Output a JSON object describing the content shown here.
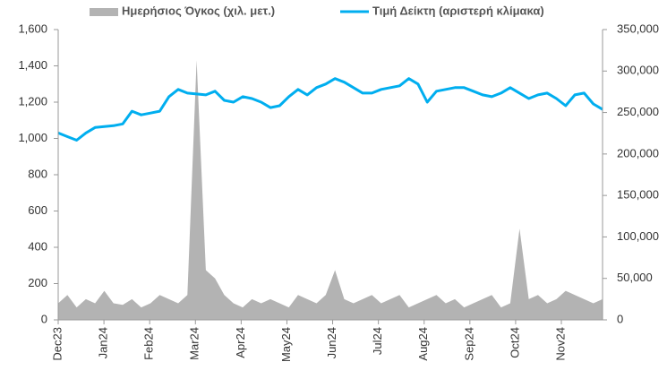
{
  "chart_data": {
    "type": "line",
    "xlim": [
      0,
      11.9
    ],
    "xticks": [
      {
        "value": 0,
        "label": "Dec23"
      },
      {
        "value": 1,
        "label": "Jan24"
      },
      {
        "value": 2,
        "label": "Feb24"
      },
      {
        "value": 3,
        "label": "Mar24"
      },
      {
        "value": 4,
        "label": "Apr24"
      },
      {
        "value": 5,
        "label": "May24"
      },
      {
        "value": 6,
        "label": "Jun24"
      },
      {
        "value": 7,
        "label": "Jul24"
      },
      {
        "value": 8,
        "label": "Aug24"
      },
      {
        "value": 9,
        "label": "Sep24"
      },
      {
        "value": 10,
        "label": "Oct24"
      },
      {
        "value": 11,
        "label": "Nov24"
      }
    ],
    "ylim": [
      0,
      1600
    ],
    "yticks": [
      0,
      200,
      400,
      600,
      800,
      {
        "value": 1000,
        "label": "1,000"
      },
      {
        "value": 1200,
        "label": "1,200"
      },
      {
        "value": 1400,
        "label": "1,400"
      },
      {
        "value": 1600,
        "label": "1,600"
      }
    ],
    "y2lim": [
      0,
      350000
    ],
    "y2ticks": [
      0,
      {
        "value": 50000,
        "label": "50,000"
      },
      {
        "value": 100000,
        "label": "100,000"
      },
      {
        "value": 150000,
        "label": "150,000"
      },
      {
        "value": 200000,
        "label": "200,000"
      },
      {
        "value": 250000,
        "label": "250,000"
      },
      {
        "value": 300000,
        "label": "300,000"
      },
      {
        "value": 350000,
        "label": "350,000"
      }
    ],
    "legend": "top",
    "series": [
      {
        "name": "Ημερήσιος Όγκος (χιλ. μετ.)",
        "color": "#b3b3b3",
        "axis": "y2",
        "kind": "area",
        "values": [
          20000,
          30000,
          15000,
          25000,
          20000,
          35000,
          20000,
          18000,
          25000,
          15000,
          20000,
          30000,
          25000,
          20000,
          30000,
          313000,
          60000,
          50000,
          30000,
          20000,
          15000,
          25000,
          20000,
          25000,
          20000,
          15000,
          30000,
          25000,
          20000,
          30000,
          60000,
          25000,
          20000,
          25000,
          30000,
          20000,
          25000,
          30000,
          15000,
          20000,
          25000,
          30000,
          20000,
          25000,
          15000,
          20000,
          25000,
          30000,
          15000,
          20000,
          110000,
          25000,
          30000,
          20000,
          25000,
          35000,
          30000,
          25000,
          20000,
          25000
        ]
      },
      {
        "name": "Τιμή Δείκτη (αριστερή κλίμακα)",
        "color": "#00aeef",
        "kind": "line",
        "values": [
          1030,
          1010,
          990,
          1030,
          1060,
          1065,
          1070,
          1080,
          1150,
          1130,
          1140,
          1150,
          1230,
          1270,
          1250,
          1245,
          1240,
          1260,
          1210,
          1200,
          1230,
          1220,
          1200,
          1170,
          1180,
          1230,
          1270,
          1240,
          1280,
          1300,
          1330,
          1310,
          1280,
          1250,
          1250,
          1270,
          1280,
          1290,
          1330,
          1300,
          1200,
          1260,
          1270,
          1280,
          1280,
          1260,
          1240,
          1230,
          1250,
          1280,
          1250,
          1220,
          1240,
          1250,
          1220,
          1180,
          1240,
          1250,
          1190,
          1160
        ]
      }
    ]
  }
}
